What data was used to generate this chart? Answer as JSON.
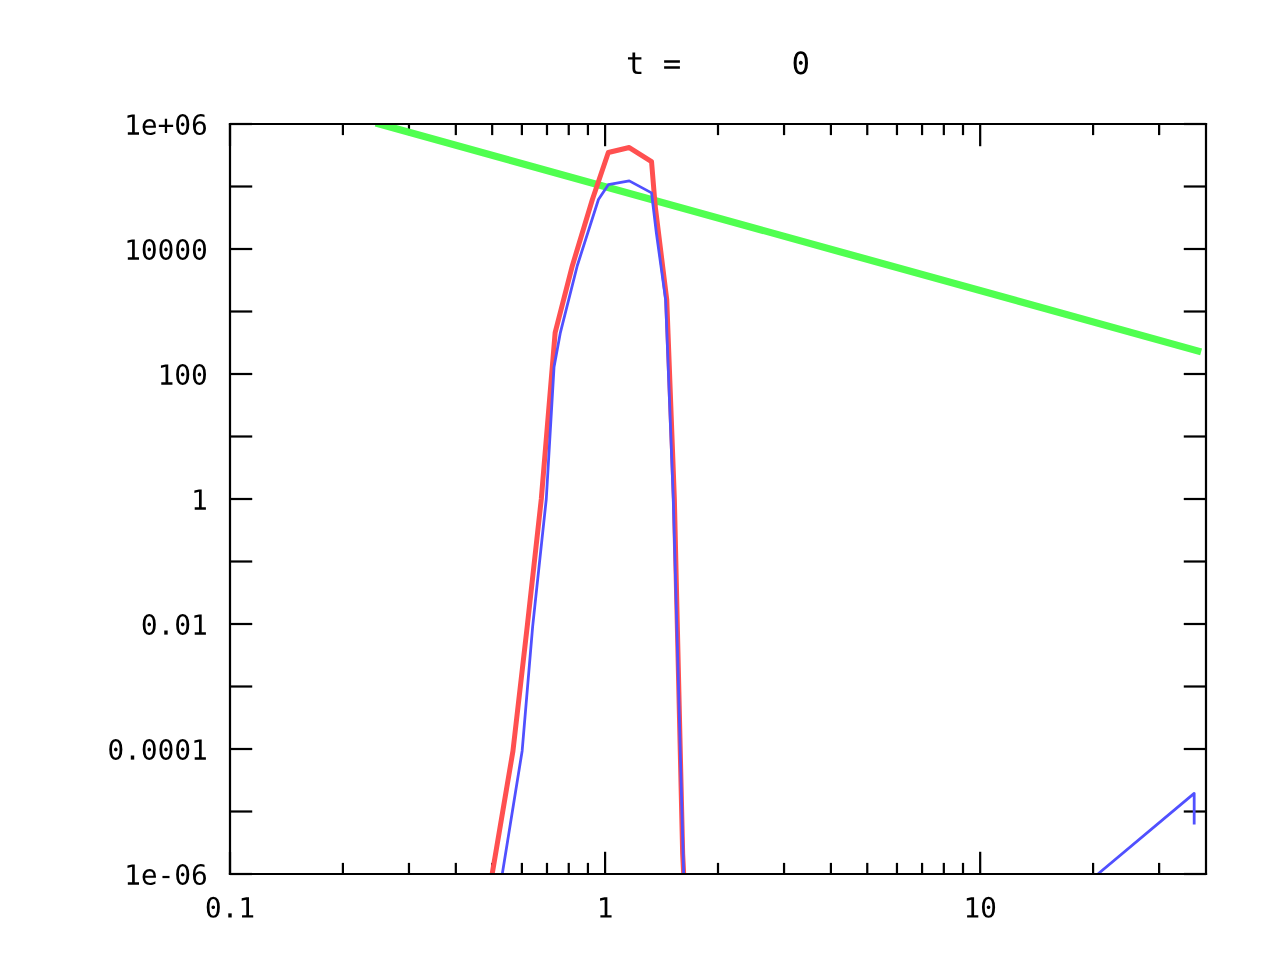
{
  "chart_data": {
    "type": "line",
    "title": "t =      0",
    "log": "xy",
    "grid": false,
    "legend": false,
    "marker": "none",
    "line_style": "solid",
    "xlim": [
      0.1,
      40
    ],
    "ylim": [
      1e-06,
      1000000
    ],
    "xticks": [
      0.1,
      {
        "value": 0.2,
        "label": null
      },
      {
        "value": 0.3,
        "label": null
      },
      {
        "value": 0.4,
        "label": null
      },
      {
        "value": 0.5,
        "label": null
      },
      {
        "value": 0.6,
        "label": null
      },
      {
        "value": 0.7,
        "label": null
      },
      {
        "value": 0.8,
        "label": null
      },
      {
        "value": 0.9,
        "label": null
      },
      1,
      {
        "value": 2,
        "label": null
      },
      {
        "value": 3,
        "label": null
      },
      {
        "value": 4,
        "label": null
      },
      {
        "value": 5,
        "label": null
      },
      {
        "value": 6,
        "label": null
      },
      {
        "value": 7,
        "label": null
      },
      {
        "value": 8,
        "label": null
      },
      {
        "value": 9,
        "label": null
      },
      10,
      {
        "value": 20,
        "label": null
      },
      {
        "value": 30,
        "label": null
      }
    ],
    "yticks": [
      {
        "value": 1e-06,
        "label": "1e-06"
      },
      {
        "value": 1e-05,
        "label": null
      },
      0.0001,
      {
        "value": 0.001,
        "label": null
      },
      0.01,
      {
        "value": 0.1,
        "label": null
      },
      1,
      {
        "value": 10,
        "label": null
      },
      100,
      {
        "value": 1000,
        "label": null
      },
      10000,
      {
        "value": 100000,
        "label": null
      },
      {
        "value": 1000000,
        "label": "1e+06"
      }
    ],
    "series": [
      {
        "color": "#50ff50",
        "x": [
          0.25,
          38
        ],
        "values": [
          1000000,
          234
        ]
      },
      {
        "color": "#ff5050",
        "x": [
          0.5,
          0.568,
          0.62,
          0.676,
          0.736,
          0.818,
          0.925,
          1.02,
          1.16,
          1.33,
          1.36,
          1.46,
          1.53,
          1.61,
          1.62
        ],
        "values": [
          1e-06,
          9.3e-05,
          0.0091,
          1.0,
          460,
          5400,
          62000,
          350000,
          420000,
          250000,
          49000,
          1550,
          1.0,
          2.1e-06,
          1e-06
        ]
      },
      {
        "color": "#5050ff",
        "x": [
          0.532,
          0.601,
          0.641,
          0.697,
          0.731,
          0.76,
          0.843,
          0.96,
          1.02,
          1.16,
          1.33,
          1.37,
          1.45,
          1.52,
          1.62,
          10,
          20.6,
          37.2,
          37.2
        ],
        "values": [
          1e-06,
          9.3e-05,
          0.0091,
          1.0,
          130,
          460,
          5400,
          62000,
          107000,
          123000,
          79000,
          18000,
          1550,
          1.0,
          1e-06,
          null,
          1e-06,
          1.95e-05,
          6.5e-06
        ]
      }
    ]
  }
}
